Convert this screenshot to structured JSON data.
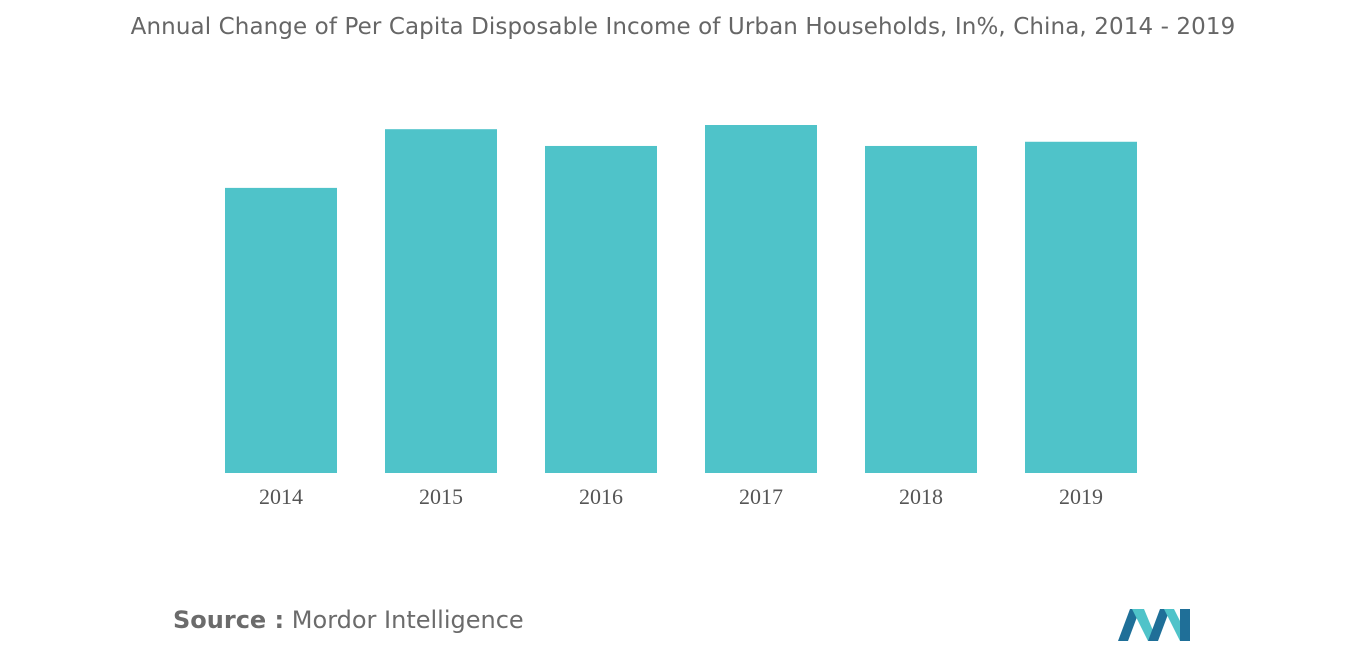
{
  "title": "Annual Change of Per Capita Disposable Income of Urban Households, In%, China, 2014 - 2019",
  "source": {
    "label": "Source :",
    "value": "Mordor Intelligence"
  },
  "colors": {
    "bar": "#4fc3c9",
    "title": "#666666",
    "logo_dark": "#1f6f98",
    "logo_light": "#4fc3c9"
  },
  "chart_data": {
    "type": "bar",
    "categories": [
      "2014",
      "2015",
      "2016",
      "2017",
      "2018",
      "2019"
    ],
    "values": [
      6.8,
      8.2,
      7.8,
      8.3,
      7.8,
      7.9
    ],
    "title": "Annual Change of Per Capita Disposable Income of Urban Households, In%, China, 2014 - 2019",
    "xlabel": "",
    "ylabel": "",
    "ylim": [
      0,
      8.3
    ],
    "grid": false,
    "legend": "none"
  }
}
